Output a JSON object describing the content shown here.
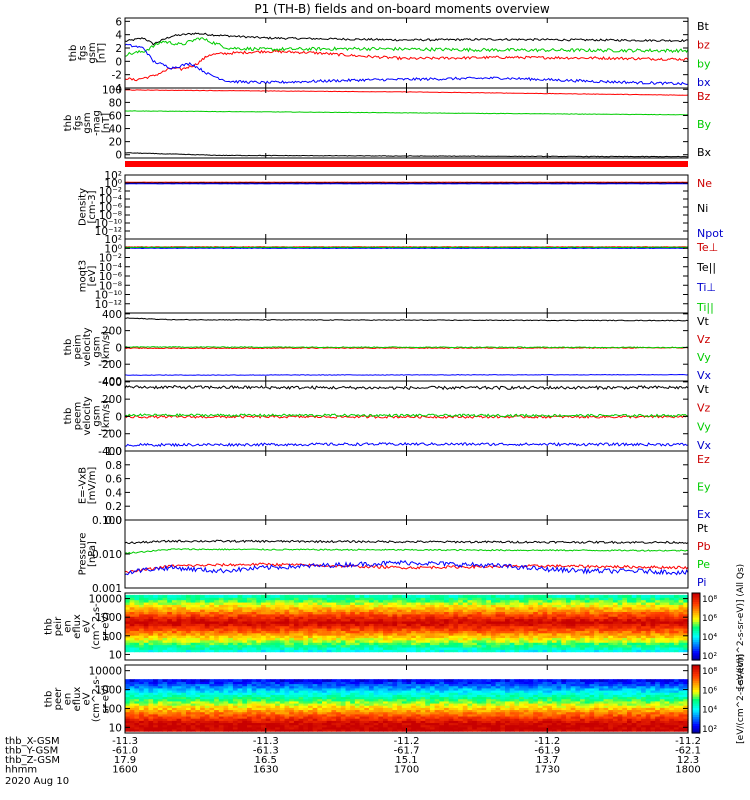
{
  "chart_data": {
    "type": "line",
    "title": "P1 (TH-B) fields and on-board moments overview",
    "date": "2020 Aug 10",
    "x_ticks": [
      "1600",
      "1630",
      "1700",
      "1730",
      "1800"
    ],
    "xlim": [
      0,
      120
    ],
    "ephemeris": [
      {
        "label": "thb_X-GSM",
        "values": [
          "-11.3",
          "-11.3",
          "-11.2",
          "-11.2",
          "-11.2"
        ]
      },
      {
        "label": "thb_Y-GSM",
        "values": [
          "-61.0",
          "-61.3",
          "-61.7",
          "-61.9",
          "-62.1"
        ]
      },
      {
        "label": "thb_Z-GSM",
        "values": [
          "17.9",
          "16.5",
          "15.1",
          "13.7",
          "12.3"
        ]
      },
      {
        "label": "hhmm",
        "values": [
          "1600",
          "1630",
          "1700",
          "1730",
          "1800"
        ]
      }
    ],
    "panels": [
      {
        "name": "fgs-gsm",
        "ylabel": [
          "thb",
          "fgs",
          "gsm",
          "[nT]"
        ],
        "ylim": [
          -4,
          6.5
        ],
        "scale": "linear",
        "ticks": [
          "6",
          "4",
          "2",
          "0",
          "-2",
          "-4"
        ],
        "tick_values": [
          6,
          4,
          2,
          0,
          -2,
          -4
        ],
        "series": [
          {
            "name": "Bt",
            "color": "#000000",
            "label_color": "#000000",
            "x": [
              0,
              4,
              6,
              10,
              15,
              20,
              30,
              40,
              60,
              80,
              100,
              120
            ],
            "y": [
              3.0,
              3.5,
              2.6,
              3.8,
              4.2,
              3.9,
              3.5,
              3.4,
              3.2,
              3.3,
              3.2,
              3.1
            ],
            "noise": 0.15
          },
          {
            "name": "bz",
            "color": "#ff0000",
            "label_color": "#cc0000",
            "x": [
              0,
              2,
              6,
              10,
              12,
              15,
              18,
              22,
              30,
              40,
              50,
              60,
              80,
              100,
              120
            ],
            "y": [
              -2.5,
              -2.8,
              -2.2,
              -1.0,
              -1.2,
              -0.5,
              1.0,
              1.2,
              1.5,
              1.3,
              0.8,
              0.4,
              0.6,
              0.5,
              0.3
            ],
            "noise": 0.2
          },
          {
            "name": "by",
            "color": "#00cc00",
            "label_color": "#00cc00",
            "x": [
              0,
              4,
              8,
              12,
              16,
              22,
              30,
              50,
              80,
              120
            ],
            "y": [
              1.0,
              1.5,
              3.0,
              2.5,
              3.5,
              2.0,
              1.8,
              1.9,
              1.7,
              1.6
            ],
            "noise": 0.25
          },
          {
            "name": "bx",
            "color": "#0000ff",
            "label_color": "#0000cc",
            "x": [
              0,
              4,
              6,
              10,
              14,
              18,
              22,
              30,
              50,
              80,
              100,
              120
            ],
            "y": [
              2.5,
              2.0,
              0.0,
              -1.0,
              -0.3,
              -2.0,
              -3.0,
              -3.2,
              -2.8,
              -2.5,
              -3.0,
              -3.4
            ],
            "noise": 0.2
          }
        ]
      },
      {
        "name": "fgs-gsm-mag",
        "ylabel": [
          "thb",
          "fgs",
          "gsm",
          "-mag",
          "[nT]"
        ],
        "ylim": [
          -5,
          102
        ],
        "scale": "linear",
        "ticks": [
          "100",
          "80",
          "60",
          "40",
          "20",
          "0"
        ],
        "tick_values": [
          100,
          80,
          60,
          40,
          20,
          0
        ],
        "series": [
          {
            "name": "Bz",
            "color": "#ff0000",
            "label_color": "#cc0000",
            "x": [
              0,
              60,
              120
            ],
            "y": [
              99,
              96,
              91
            ],
            "noise": 0.3
          },
          {
            "name": "By",
            "color": "#00cc00",
            "label_color": "#00cc00",
            "x": [
              0,
              60,
              120
            ],
            "y": [
              67,
              64,
              61
            ],
            "noise": 0.3
          },
          {
            "name": "Bx",
            "color": "#000000",
            "label_color": "#000000",
            "x": [
              0,
              20,
              60,
              120
            ],
            "y": [
              3,
              -1,
              -2,
              -3
            ],
            "noise": 0.4
          }
        ]
      },
      {
        "name": "density",
        "ylabel": [
          "Density",
          "[cm-3]"
        ],
        "ylim": [
          -14,
          2
        ],
        "scale": "log",
        "ticks": [
          "10²",
          "10⁰",
          "10⁻²",
          "10⁻⁴",
          "10⁻⁶",
          "10⁻⁸",
          "10⁻¹⁰",
          "10⁻¹²"
        ],
        "tick_values": [
          2,
          0,
          -2,
          -4,
          -6,
          -8,
          -10,
          -12
        ],
        "series": [
          {
            "name": "Ne",
            "color": "#ff0000",
            "label_color": "#cc0000",
            "x": [
              0,
              120
            ],
            "y": [
              0.2,
              0.2
            ],
            "noise": 0.03
          },
          {
            "name": "Ni",
            "color": "#000000",
            "label_color": "#000000",
            "x": [
              0,
              120
            ],
            "y": [
              0.0,
              0.0
            ],
            "noise": 0.03
          },
          {
            "name": "Npot",
            "color": "#0000ff",
            "label_color": "#0000cc",
            "x": [
              0,
              120
            ],
            "y": [
              -0.2,
              -0.2
            ],
            "noise": 0.03
          }
        ]
      },
      {
        "name": "temperature",
        "ylabel": [
          "moqt3",
          "[eV]"
        ],
        "ylim": [
          -14,
          2
        ],
        "scale": "log",
        "ticks": [
          "10²",
          "10⁰",
          "10⁻²",
          "10⁻⁴",
          "10⁻⁶",
          "10⁻⁸",
          "10⁻¹⁰",
          "10⁻¹²"
        ],
        "tick_values": [
          2,
          0,
          -2,
          -4,
          -6,
          -8,
          -10,
          -12
        ],
        "series": [
          {
            "name": "Te⊥",
            "color": "#ff0000",
            "label_color": "#cc0000",
            "x": [
              0,
              120
            ],
            "y": [
              0.3,
              0.3
            ],
            "noise": 0.05
          },
          {
            "name": "Te||",
            "color": "#000000",
            "label_color": "#000000",
            "x": [
              0,
              120
            ],
            "y": [
              0.1,
              0.1
            ],
            "noise": 0.05
          },
          {
            "name": "Ti⊥",
            "color": "#0000ff",
            "label_color": "#0000cc",
            "x": [
              0,
              120
            ],
            "y": [
              0.0,
              0.0
            ],
            "noise": 0.05
          },
          {
            "name": "Ti||",
            "color": "#00cc00",
            "label_color": "#00cc00",
            "x": [
              0,
              120
            ],
            "y": [
              0.2,
              0.2
            ],
            "noise": 0.05
          }
        ]
      },
      {
        "name": "peim-velocity",
        "ylabel": [
          "thb",
          "peim",
          "velocity",
          "gsm",
          "[km/s]"
        ],
        "ylim": [
          -400,
          410
        ],
        "scale": "linear",
        "ticks": [
          "400",
          "200",
          "0",
          "-200",
          "-400"
        ],
        "tick_values": [
          400,
          200,
          0,
          -200,
          -400
        ],
        "series": [
          {
            "name": "Vt",
            "color": "#000000",
            "label_color": "#000000",
            "x": [
              0,
              10,
              60,
              120
            ],
            "y": [
              350,
              330,
              325,
              320
            ],
            "noise": 4
          },
          {
            "name": "Vz",
            "color": "#ff0000",
            "label_color": "#cc0000",
            "x": [
              0,
              120
            ],
            "y": [
              -10,
              -5
            ],
            "noise": 5
          },
          {
            "name": "Vy",
            "color": "#00cc00",
            "label_color": "#00cc00",
            "x": [
              0,
              120
            ],
            "y": [
              5,
              0
            ],
            "noise": 5
          },
          {
            "name": "Vx",
            "color": "#0000ff",
            "label_color": "#0000cc",
            "x": [
              0,
              120
            ],
            "y": [
              -330,
              -325
            ],
            "noise": 3
          }
        ]
      },
      {
        "name": "peem-velocity",
        "ylabel": [
          "thb",
          "peem",
          "velocity",
          "gsm",
          "[km/s]"
        ],
        "ylim": [
          -400,
          410
        ],
        "scale": "linear",
        "ticks": [
          "400",
          "200",
          "0",
          "-200",
          "-400"
        ],
        "tick_values": [
          400,
          200,
          0,
          -200,
          -400
        ],
        "series": [
          {
            "name": "Vt",
            "color": "#000000",
            "label_color": "#000000",
            "x": [
              0,
              60,
              120
            ],
            "y": [
              340,
              330,
              335
            ],
            "noise": 18
          },
          {
            "name": "Vz",
            "color": "#ff0000",
            "label_color": "#cc0000",
            "x": [
              0,
              120
            ],
            "y": [
              -5,
              -5
            ],
            "noise": 14
          },
          {
            "name": "Vy",
            "color": "#00cc00",
            "label_color": "#00cc00",
            "x": [
              0,
              120
            ],
            "y": [
              15,
              10
            ],
            "noise": 14
          },
          {
            "name": "Vx",
            "color": "#0000ff",
            "label_color": "#0000cc",
            "x": [
              0,
              60,
              120
            ],
            "y": [
              -330,
              -320,
              -325
            ],
            "noise": 16
          }
        ]
      },
      {
        "name": "efield",
        "ylabel": [
          "E=-VxB",
          "[mV/m]"
        ],
        "ylim": [
          0,
          1.0
        ],
        "scale": "linear",
        "ticks": [
          "1.0",
          "0.8",
          "0.6",
          "0.4",
          "0.2",
          "0.0"
        ],
        "tick_values": [
          1.0,
          0.8,
          0.6,
          0.4,
          0.2,
          0.0
        ],
        "series": [],
        "legend": [
          {
            "name": "Ez",
            "label_color": "#cc0000"
          },
          {
            "name": "Ey",
            "label_color": "#00cc00"
          },
          {
            "name": "Ex",
            "label_color": "#0000cc"
          }
        ]
      },
      {
        "name": "pressure",
        "ylabel": [
          "Pressure",
          "[nPa]"
        ],
        "ylim": [
          -3,
          -1
        ],
        "scale": "log",
        "ticks": [
          "0.100",
          "0.010",
          "0.001"
        ],
        "tick_values": [
          -1,
          -2,
          -3
        ],
        "series": [
          {
            "name": "Pt",
            "color": "#000000",
            "label_color": "#000000",
            "x": [
              0,
              10,
              60,
              120
            ],
            "y": [
              -1.68,
              -1.62,
              -1.64,
              -1.66
            ],
            "noise": 0.03
          },
          {
            "name": "Pb",
            "color": "#ff0000",
            "label_color": "#cc0000",
            "x": [
              0,
              10,
              30,
              60,
              90,
              120
            ],
            "y": [
              -2.55,
              -2.35,
              -2.3,
              -2.4,
              -2.35,
              -2.4
            ],
            "noise": 0.04
          },
          {
            "name": "Pe",
            "color": "#00cc00",
            "label_color": "#00cc00",
            "x": [
              0,
              10,
              60,
              120
            ],
            "y": [
              -1.98,
              -1.86,
              -1.88,
              -1.9
            ],
            "noise": 0.02
          },
          {
            "name": "Pi",
            "color": "#0000ff",
            "label_color": "#0000cc",
            "x": [
              0,
              5,
              10,
              20,
              30,
              40,
              50,
              60,
              70,
              80,
              90,
              100,
              110,
              120
            ],
            "y": [
              -2.55,
              -2.45,
              -2.4,
              -2.5,
              -2.4,
              -2.35,
              -2.3,
              -2.25,
              -2.3,
              -2.35,
              -2.45,
              -2.5,
              -2.5,
              -2.55
            ],
            "noise": 0.07
          }
        ]
      },
      {
        "name": "peir-eflux",
        "ylabel": [
          "thb",
          "peir",
          "en",
          "eflux",
          "eV",
          "(cm^2-s-",
          "sr-eV)"
        ],
        "ylim": [
          0.7,
          4.3
        ],
        "scale": "log",
        "type": "heatmap",
        "ticks": [
          "10000",
          "1000",
          "100",
          "10"
        ],
        "tick_values": [
          4,
          3,
          2,
          1
        ],
        "energy_range": [
          1.15,
          4.2
        ],
        "peak_energy_log": 2.75,
        "colorbar_label": "[eV/(cm^2-s-sr-eV)] (All Qs)",
        "colorbar_ticks": [
          "10⁸",
          "10⁶",
          "10⁴",
          "10²"
        ]
      },
      {
        "name": "peer-eflux",
        "ylabel": [
          "thb",
          "peer",
          "en",
          "eflux",
          "eV",
          "(cm^2-s-",
          "sr-eV)"
        ],
        "ylim": [
          0.7,
          4.3
        ],
        "scale": "log",
        "type": "heatmap",
        "ticks": [
          "10000",
          "1000",
          "100",
          "10"
        ],
        "tick_values": [
          4,
          3,
          2,
          1
        ],
        "energy_range": [
          0.8,
          3.55
        ],
        "peak_energy_log": 1.2,
        "colorbar_label": "[eV/(cm^2-s-sr-eV)]",
        "colorbar_ticks": [
          "10⁸",
          "10⁶",
          "10⁴",
          "10²"
        ]
      }
    ]
  }
}
